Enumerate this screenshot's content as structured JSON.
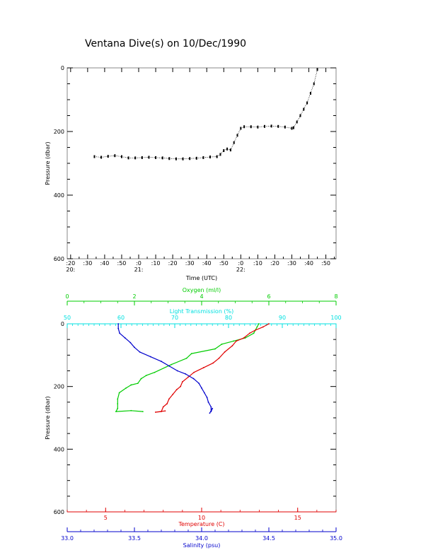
{
  "page": {
    "title": "Ventana Dive(s) on 10/Dec/1990"
  },
  "chart_data": [
    {
      "type": "scatter",
      "title": "Ventana Dive(s) on 10/Dec/1990",
      "xlabel": "Time (UTC)",
      "ylabel": "Pressure (dbar)",
      "x_tick_labels": [
        ":20",
        ":30",
        ":40",
        ":50",
        ":0",
        ":10",
        ":20",
        ":30",
        ":40",
        ":50",
        ":0",
        ":10",
        ":20",
        ":30",
        ":40",
        ":50"
      ],
      "hour_labels": [
        "20:",
        "21:",
        "22:"
      ],
      "y_tick_labels": [
        "0",
        "200",
        "400",
        "600"
      ],
      "xlim": [
        "20:18",
        "22:56"
      ],
      "ylim": [
        600,
        0
      ],
      "series": [
        {
          "color": "#000000",
          "x": [
            "20:34",
            "20:38",
            "20:42",
            "20:46",
            "20:50",
            "20:54",
            "20:58",
            "21:02",
            "21:06",
            "21:10",
            "21:14",
            "21:18",
            "21:22",
            "21:26",
            "21:30",
            "21:34",
            "21:38",
            "21:42",
            "21:46",
            "21:48",
            "21:50",
            "21:52",
            "21:54",
            "21:56",
            "21:58",
            "22:00",
            "22:02",
            "22:06",
            "22:10",
            "22:14",
            "22:18",
            "22:22",
            "22:26",
            "22:30",
            "22:31",
            "22:33",
            "22:35",
            "22:37",
            "22:39",
            "22:41",
            "22:43",
            "22:45"
          ],
          "y": [
            279,
            281,
            278,
            276,
            279,
            283,
            283,
            282,
            281,
            282,
            283,
            285,
            286,
            286,
            285,
            284,
            282,
            280,
            279,
            272,
            260,
            255,
            258,
            235,
            212,
            190,
            185,
            185,
            186,
            184,
            183,
            184,
            186,
            190,
            188,
            170,
            150,
            130,
            110,
            80,
            50,
            5
          ]
        }
      ]
    },
    {
      "type": "line",
      "ylabel": "Pressure (dbar)",
      "ylim": [
        600,
        0
      ],
      "y_tick_labels": [
        "0",
        "200",
        "400",
        "600"
      ],
      "axes": {
        "oxygen": {
          "label": "Oxygen (ml/l)",
          "range": [
            0,
            8
          ],
          "ticks": [
            "0",
            "2",
            "4",
            "6",
            "8"
          ],
          "color": "#00cc00",
          "position": "top"
        },
        "light_transmission": {
          "label": "Light Transmission (%)",
          "range": [
            50,
            100
          ],
          "ticks": [
            "50",
            "60",
            "70",
            "80",
            "90",
            "100"
          ],
          "color": "#00e0e0",
          "position": "top"
        },
        "temperature": {
          "label": "Temperature (C)",
          "range": [
            3,
            17
          ],
          "ticks": [
            "5",
            "10",
            "15"
          ],
          "color": "#e00000",
          "position": "bottom"
        },
        "salinity": {
          "label": "Salinity (psu)",
          "range": [
            33.0,
            35.0
          ],
          "ticks": [
            "33.0",
            "33.5",
            "34.0",
            "34.5",
            "35.0"
          ],
          "color": "#0000cc",
          "position": "bottom"
        }
      },
      "series": [
        {
          "name": "Oxygen (ml/l)",
          "axis": "oxygen",
          "color": "#00cc00",
          "values": [
            [
              5.7,
              0
            ],
            [
              5.65,
              10
            ],
            [
              5.55,
              30
            ],
            [
              5.3,
              45
            ],
            [
              4.95,
              55
            ],
            [
              4.6,
              65
            ],
            [
              4.4,
              80
            ],
            [
              3.7,
              95
            ],
            [
              3.55,
              110
            ],
            [
              3.1,
              130
            ],
            [
              2.6,
              155
            ],
            [
              2.35,
              165
            ],
            [
              2.2,
              175
            ],
            [
              2.1,
              190
            ],
            [
              1.9,
              195
            ],
            [
              1.75,
              205
            ],
            [
              1.55,
              220
            ],
            [
              1.5,
              240
            ],
            [
              1.5,
              255
            ],
            [
              1.5,
              270
            ],
            [
              1.45,
              280
            ],
            [
              1.9,
              277
            ],
            [
              2.25,
              280
            ]
          ]
        },
        {
          "name": "Light Transmission (%)",
          "axis": "light_transmission",
          "color": "#00e0e0",
          "values": []
        },
        {
          "name": "Temperature (C)",
          "axis": "temperature",
          "color": "#e00000",
          "values": [
            [
              13.5,
              0
            ],
            [
              13.2,
              10
            ],
            [
              12.8,
              20
            ],
            [
              12.5,
              30
            ],
            [
              12.2,
              45
            ],
            [
              11.8,
              55
            ],
            [
              11.6,
              70
            ],
            [
              11.2,
              90
            ],
            [
              10.9,
              110
            ],
            [
              10.6,
              125
            ],
            [
              10.1,
              140
            ],
            [
              9.6,
              155
            ],
            [
              9.3,
              170
            ],
            [
              9.0,
              185
            ],
            [
              8.9,
              200
            ],
            [
              8.7,
              210
            ],
            [
              8.5,
              225
            ],
            [
              8.3,
              240
            ],
            [
              8.2,
              255
            ],
            [
              8.0,
              265
            ],
            [
              7.9,
              280
            ],
            [
              7.6,
              282
            ],
            [
              8.1,
              278
            ]
          ]
        },
        {
          "name": "Salinity (psu)",
          "axis": "salinity",
          "color": "#0000cc",
          "values": [
            [
              33.38,
              0
            ],
            [
              33.38,
              15
            ],
            [
              33.39,
              30
            ],
            [
              33.43,
              45
            ],
            [
              33.47,
              60
            ],
            [
              33.5,
              75
            ],
            [
              33.54,
              90
            ],
            [
              33.62,
              105
            ],
            [
              33.7,
              120
            ],
            [
              33.76,
              135
            ],
            [
              33.82,
              150
            ],
            [
              33.88,
              160
            ],
            [
              33.94,
              175
            ],
            [
              33.98,
              190
            ],
            [
              34.0,
              205
            ],
            [
              34.02,
              220
            ],
            [
              34.04,
              235
            ],
            [
              34.05,
              250
            ],
            [
              34.07,
              265
            ],
            [
              34.07,
              280
            ],
            [
              34.08,
              270
            ],
            [
              34.06,
              285
            ]
          ]
        }
      ]
    }
  ]
}
